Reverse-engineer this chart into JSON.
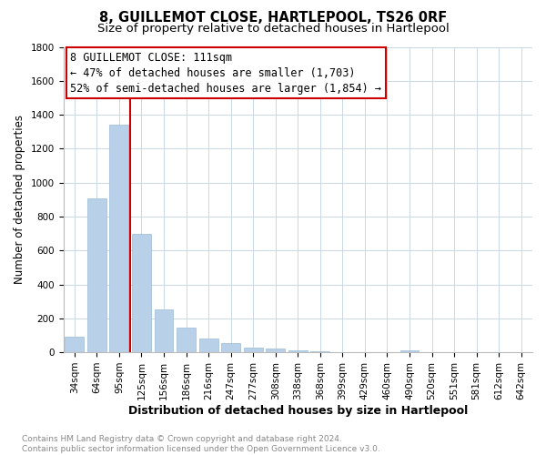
{
  "title": "8, GUILLEMOT CLOSE, HARTLEPOOL, TS26 0RF",
  "subtitle": "Size of property relative to detached houses in Hartlepool",
  "xlabel": "Distribution of detached houses by size in Hartlepool",
  "ylabel": "Number of detached properties",
  "categories": [
    "34sqm",
    "64sqm",
    "95sqm",
    "125sqm",
    "156sqm",
    "186sqm",
    "216sqm",
    "247sqm",
    "277sqm",
    "308sqm",
    "338sqm",
    "368sqm",
    "399sqm",
    "429sqm",
    "460sqm",
    "490sqm",
    "520sqm",
    "551sqm",
    "581sqm",
    "612sqm",
    "642sqm"
  ],
  "values": [
    90,
    905,
    1340,
    700,
    250,
    145,
    80,
    55,
    25,
    22,
    10,
    8,
    0,
    0,
    0,
    12,
    0,
    0,
    0,
    0,
    0
  ],
  "bar_color": "#b8d0e8",
  "bar_edge_color": "#9bbbd6",
  "vline_x_index": 2,
  "vline_color": "#cc0000",
  "ylim": [
    0,
    1800
  ],
  "yticks": [
    0,
    200,
    400,
    600,
    800,
    1000,
    1200,
    1400,
    1600,
    1800
  ],
  "ann_line1": "8 GUILLEMOT CLOSE: 111sqm",
  "ann_line2": "← 47% of detached houses are smaller (1,703)",
  "ann_line3": "52% of semi-detached houses are larger (1,854) →",
  "footer_text": "Contains HM Land Registry data © Crown copyright and database right 2024.\nContains public sector information licensed under the Open Government Licence v3.0.",
  "background_color": "#ffffff",
  "grid_color": "#c8d8e8",
  "title_fontsize": 10.5,
  "subtitle_fontsize": 9.5,
  "xlabel_fontsize": 9,
  "ylabel_fontsize": 8.5,
  "tick_fontsize": 7.5,
  "ann_fontsize": 8.5,
  "footer_fontsize": 6.5
}
